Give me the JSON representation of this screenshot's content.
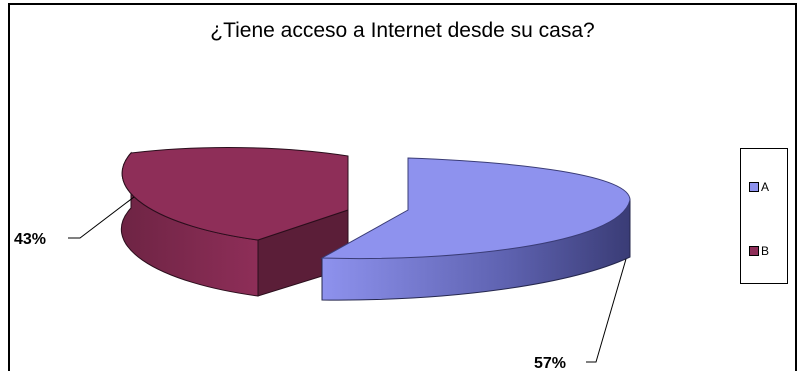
{
  "chart_data": {
    "type": "pie",
    "style": "3d-exploded",
    "title": "¿Tiene acceso a Internet desde su casa?",
    "categories": [
      "A",
      "B"
    ],
    "values": [
      57,
      43
    ],
    "labels": [
      "57%",
      "43%"
    ],
    "colors": [
      "#8e92ee",
      "#8e2e58"
    ],
    "legend_position": "right"
  }
}
